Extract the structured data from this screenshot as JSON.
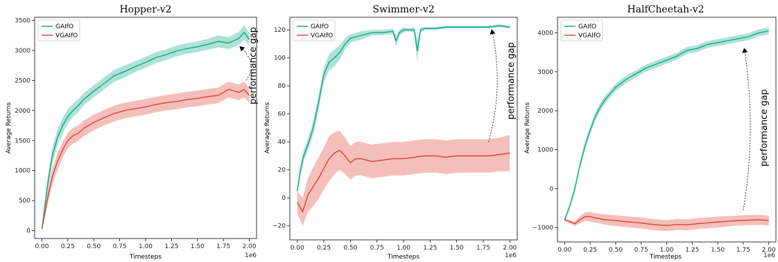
{
  "chart_data": [
    {
      "type": "line",
      "title": "Hopper-v2",
      "xlabel": "Timesteps",
      "ylabel": "Average Returns",
      "x_offset_label": "1e6",
      "xlim": [
        -0.07,
        2.07
      ],
      "ylim": [
        -130,
        3550
      ],
      "xticks": [
        0.0,
        0.25,
        0.5,
        0.75,
        1.0,
        1.25,
        1.5,
        1.75,
        2.0
      ],
      "xtick_labels": [
        "0.00",
        "0.25",
        "0.50",
        "0.75",
        "1.00",
        "1.25",
        "1.50",
        "1.75",
        "2.00"
      ],
      "yticks": [
        0,
        500,
        1000,
        1500,
        2000,
        2500,
        3000,
        3500
      ],
      "ytick_labels": [
        "0",
        "500",
        "1000",
        "1500",
        "2000",
        "2500",
        "3000",
        "3500"
      ],
      "legend": "top-left",
      "grid": false,
      "series": [
        {
          "name": "GAIfO",
          "color": "#1aab8a",
          "x": [
            0.0,
            0.05,
            0.1,
            0.15,
            0.2,
            0.25,
            0.3,
            0.35,
            0.4,
            0.5,
            0.6,
            0.7,
            0.8,
            0.9,
            1.0,
            1.1,
            1.2,
            1.3,
            1.4,
            1.5,
            1.6,
            1.7,
            1.8,
            1.9,
            1.95,
            2.0
          ],
          "y": [
            30,
            700,
            1250,
            1550,
            1750,
            1900,
            2000,
            2080,
            2180,
            2320,
            2450,
            2580,
            2650,
            2730,
            2800,
            2880,
            2930,
            2990,
            3030,
            3060,
            3100,
            3150,
            3120,
            3200,
            3300,
            3180
          ],
          "band": [
            30,
            120,
            130,
            130,
            130,
            120,
            110,
            110,
            100,
            100,
            100,
            100,
            100,
            90,
            90,
            90,
            90,
            90,
            90,
            90,
            90,
            100,
            100,
            110,
            120,
            110
          ]
        },
        {
          "name": "VGAIfO",
          "color": "#e0483a",
          "x": [
            0.0,
            0.05,
            0.1,
            0.15,
            0.2,
            0.25,
            0.3,
            0.35,
            0.4,
            0.5,
            0.6,
            0.7,
            0.8,
            0.9,
            1.0,
            1.1,
            1.2,
            1.3,
            1.4,
            1.5,
            1.6,
            1.7,
            1.8,
            1.9,
            1.95,
            2.0
          ],
          "y": [
            30,
            500,
            900,
            1150,
            1350,
            1500,
            1580,
            1620,
            1700,
            1800,
            1880,
            1950,
            2000,
            2030,
            2060,
            2100,
            2130,
            2150,
            2180,
            2200,
            2230,
            2250,
            2350,
            2300,
            2350,
            2250
          ],
          "band": [
            30,
            100,
            140,
            140,
            130,
            130,
            130,
            130,
            130,
            130,
            130,
            130,
            130,
            130,
            130,
            130,
            130,
            130,
            130,
            130,
            130,
            130,
            130,
            130,
            130,
            120
          ]
        }
      ],
      "annotations": [
        {
          "text": "performance gap",
          "x_from": 1.97,
          "y_from": 2500,
          "x_to": 1.91,
          "y_to": 3060
        }
      ]
    },
    {
      "type": "line",
      "title": "Swimmer-v2",
      "xlabel": "Timesteps",
      "ylabel": "Average Returns",
      "x_offset_label": "1e6",
      "xlim": [
        -0.07,
        2.07
      ],
      "ylim": [
        -30,
        129
      ],
      "xticks": [
        0.0,
        0.25,
        0.5,
        0.75,
        1.0,
        1.25,
        1.5,
        1.75,
        2.0
      ],
      "xtick_labels": [
        "0.00",
        "0.25",
        "0.50",
        "0.75",
        "1.00",
        "1.25",
        "1.50",
        "1.75",
        "2.00"
      ],
      "yticks": [
        -20,
        0,
        20,
        40,
        60,
        80,
        100,
        120
      ],
      "ytick_labels": [
        "−20",
        "0",
        "20",
        "40",
        "60",
        "80",
        "100",
        "120"
      ],
      "legend": "top-left",
      "grid": false,
      "series": [
        {
          "name": "GAIfO",
          "color": "#1aab8a",
          "x": [
            0.0,
            0.03,
            0.06,
            0.1,
            0.15,
            0.2,
            0.25,
            0.3,
            0.35,
            0.4,
            0.45,
            0.5,
            0.6,
            0.7,
            0.8,
            0.9,
            0.93,
            0.96,
            1.0,
            1.05,
            1.1,
            1.13,
            1.16,
            1.2,
            1.3,
            1.4,
            1.5,
            1.6,
            1.7,
            1.8,
            1.9,
            2.0
          ],
          "y": [
            5,
            20,
            30,
            38,
            50,
            68,
            88,
            97,
            100,
            104,
            110,
            114,
            116,
            118,
            118,
            119,
            112,
            118,
            120,
            120,
            120,
            105,
            120,
            121,
            121,
            122,
            122,
            122,
            122,
            122,
            123,
            122
          ],
          "band": [
            3,
            4,
            4,
            4,
            5,
            5,
            5,
            6,
            6,
            5,
            4,
            3,
            3,
            2,
            2,
            2,
            4,
            2,
            2,
            1,
            2,
            8,
            2,
            1,
            1,
            1,
            1,
            1,
            1,
            1,
            1,
            1
          ]
        },
        {
          "name": "VGAIfO",
          "color": "#e0483a",
          "x": [
            0.0,
            0.05,
            0.1,
            0.15,
            0.2,
            0.25,
            0.3,
            0.35,
            0.4,
            0.45,
            0.5,
            0.55,
            0.6,
            0.7,
            0.8,
            0.9,
            1.0,
            1.1,
            1.2,
            1.3,
            1.4,
            1.5,
            1.6,
            1.7,
            1.8,
            1.9,
            2.0
          ],
          "y": [
            -3,
            -10,
            2,
            8,
            14,
            21,
            28,
            32,
            34,
            30,
            25,
            28,
            28,
            26,
            27,
            28,
            28,
            29,
            30,
            30,
            29,
            30,
            30,
            30,
            30,
            31,
            32
          ],
          "band": [
            8,
            10,
            12,
            14,
            15,
            15,
            16,
            15,
            14,
            13,
            12,
            12,
            12,
            12,
            12,
            12,
            12,
            12,
            12,
            12,
            12,
            12,
            12,
            12,
            12,
            12,
            13
          ]
        }
      ],
      "annotations": [
        {
          "text": "performance gap",
          "x_from": 1.8,
          "y_from": 40,
          "x_to": 1.83,
          "y_to": 120
        }
      ]
    },
    {
      "type": "line",
      "title": "HalfCheetah-v2",
      "xlabel": "Timesteps",
      "ylabel": "Average Returns",
      "x_offset_label": "1e6",
      "xlim": [
        -0.07,
        2.07
      ],
      "ylim": [
        -1370,
        4400
      ],
      "xticks": [
        0.0,
        0.25,
        0.5,
        0.75,
        1.0,
        1.25,
        1.5,
        1.75,
        2.0
      ],
      "xtick_labels": [
        "0.00",
        "0.25",
        "0.50",
        "0.75",
        "1.00",
        "1.25",
        "1.50",
        "1.75",
        "2.00"
      ],
      "yticks": [
        -1000,
        0,
        1000,
        2000,
        3000,
        4000
      ],
      "ytick_labels": [
        "−1000",
        "0",
        "1000",
        "2000",
        "3000",
        "4000"
      ],
      "legend": "top-left",
      "grid": false,
      "series": [
        {
          "name": "GAIfO",
          "color": "#1aab8a",
          "x": [
            0.0,
            0.05,
            0.1,
            0.15,
            0.2,
            0.25,
            0.3,
            0.35,
            0.4,
            0.5,
            0.6,
            0.7,
            0.8,
            0.9,
            1.0,
            1.1,
            1.2,
            1.3,
            1.4,
            1.5,
            1.6,
            1.7,
            1.8,
            1.9,
            2.0
          ],
          "y": [
            -800,
            -450,
            0,
            600,
            1100,
            1500,
            1850,
            2100,
            2300,
            2600,
            2800,
            2950,
            3100,
            3200,
            3300,
            3400,
            3550,
            3600,
            3700,
            3750,
            3800,
            3850,
            3900,
            4000,
            4050
          ],
          "band": [
            40,
            60,
            80,
            90,
            100,
            100,
            100,
            100,
            100,
            100,
            100,
            90,
            90,
            90,
            90,
            90,
            90,
            90,
            90,
            90,
            90,
            90,
            90,
            90,
            90
          ]
        },
        {
          "name": "VGAIfO",
          "color": "#e0483a",
          "x": [
            0.0,
            0.05,
            0.1,
            0.15,
            0.2,
            0.25,
            0.3,
            0.4,
            0.5,
            0.6,
            0.7,
            0.8,
            0.9,
            1.0,
            1.1,
            1.2,
            1.3,
            1.4,
            1.5,
            1.6,
            1.7,
            1.8,
            1.9,
            2.0
          ],
          "y": [
            -800,
            -850,
            -900,
            -800,
            -720,
            -720,
            -750,
            -800,
            -820,
            -850,
            -870,
            -900,
            -930,
            -950,
            -920,
            -930,
            -900,
            -880,
            -860,
            -840,
            -820,
            -810,
            -800,
            -820
          ],
          "band": [
            30,
            40,
            60,
            90,
            110,
            120,
            120,
            130,
            140,
            140,
            140,
            140,
            140,
            140,
            140,
            140,
            140,
            140,
            140,
            130,
            130,
            130,
            130,
            130
          ]
        }
      ],
      "annotations": [
        {
          "text": "performance gap",
          "x_from": 1.75,
          "y_from": -550,
          "x_to": 1.76,
          "y_to": 3600
        }
      ]
    }
  ]
}
